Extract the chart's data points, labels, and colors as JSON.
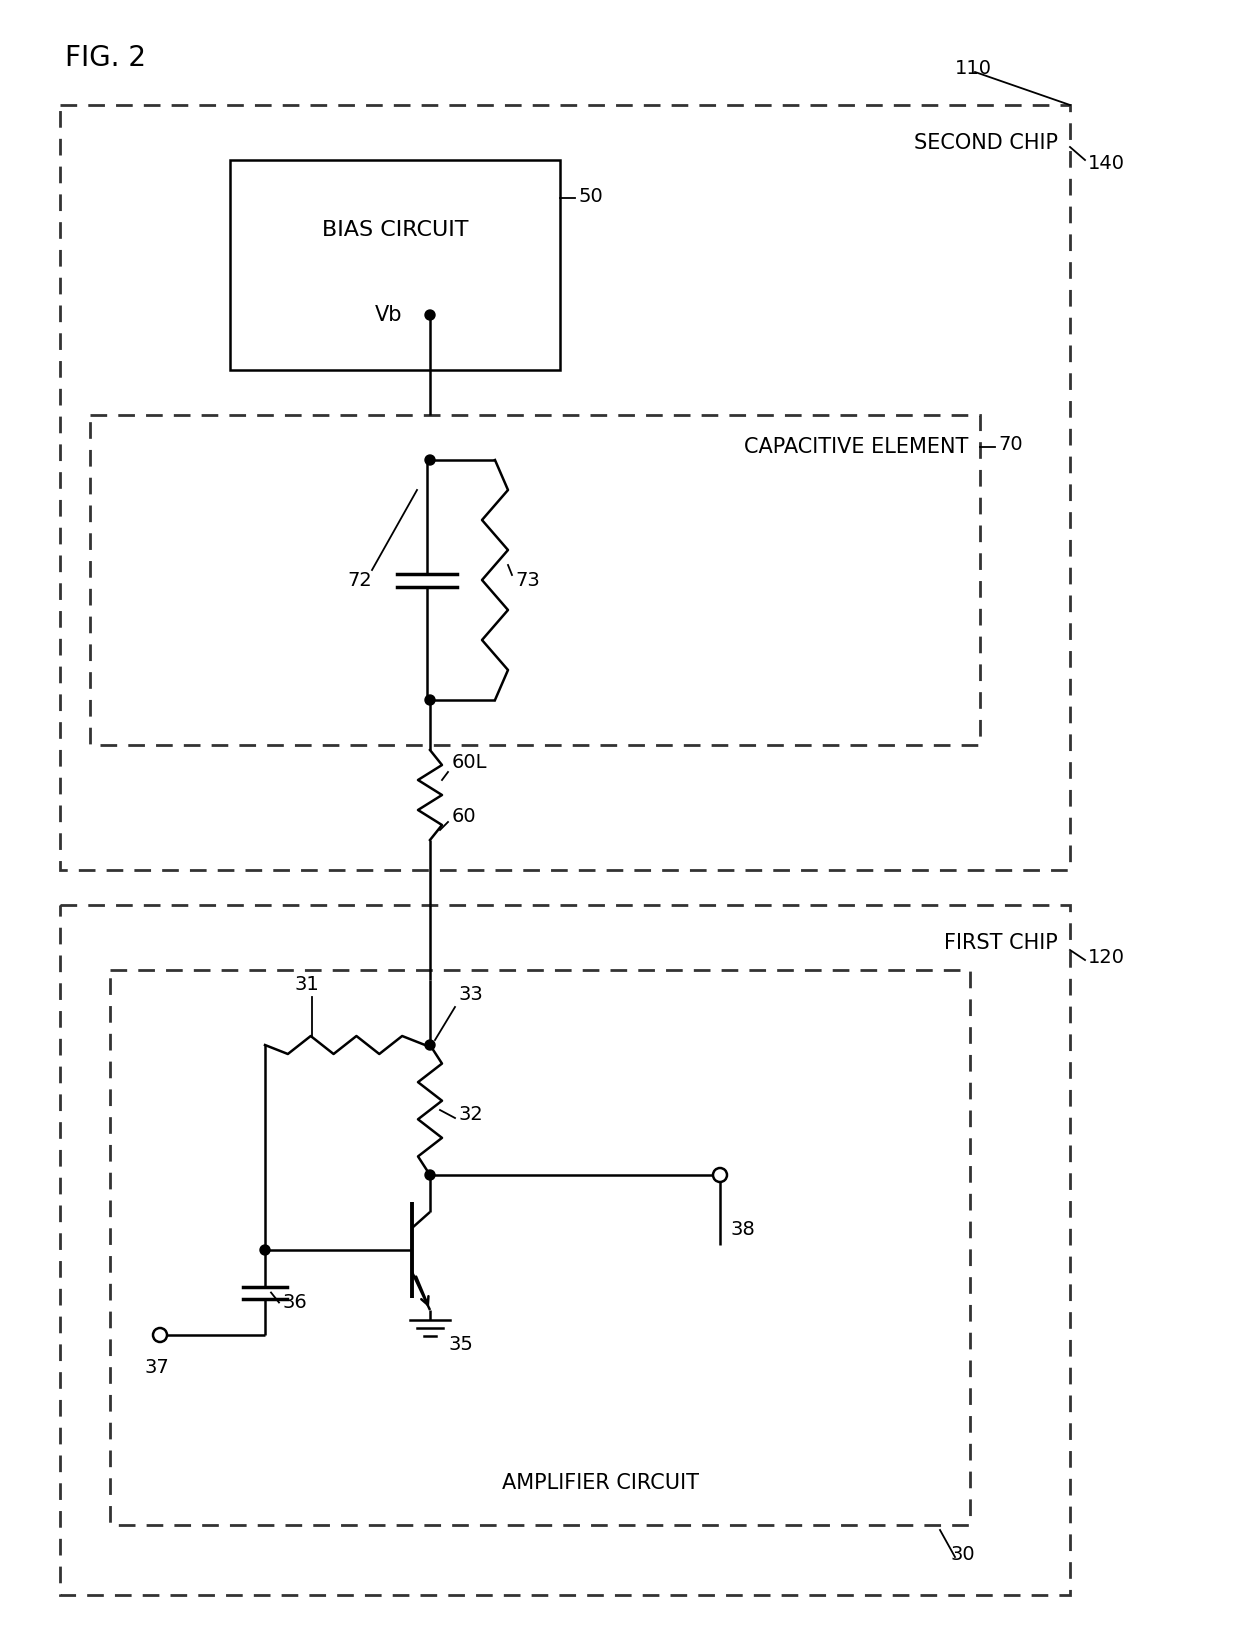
{
  "fig_label": "FIG. 2",
  "bg_color": "#ffffff",
  "line_color": "#000000",
  "labels": {
    "fig": "FIG. 2",
    "second_chip": "SECOND CHIP",
    "first_chip": "FIRST CHIP",
    "bias_circuit": "BIAS CIRCUIT",
    "vb": "Vb",
    "capacitive_element": "CAPACITIVE ELEMENT",
    "amplifier_circuit": "AMPLIFIER CIRCUIT",
    "n110": "110",
    "n120": "120",
    "n140": "140",
    "n30": "30",
    "n50": "50",
    "n60": "60",
    "n60L": "60L",
    "n70": "70",
    "n31": "31",
    "n32": "32",
    "n33": "33",
    "n35": "35",
    "n36": "36",
    "n37": "37",
    "n38": "38",
    "n72": "72",
    "n73": "73"
  }
}
